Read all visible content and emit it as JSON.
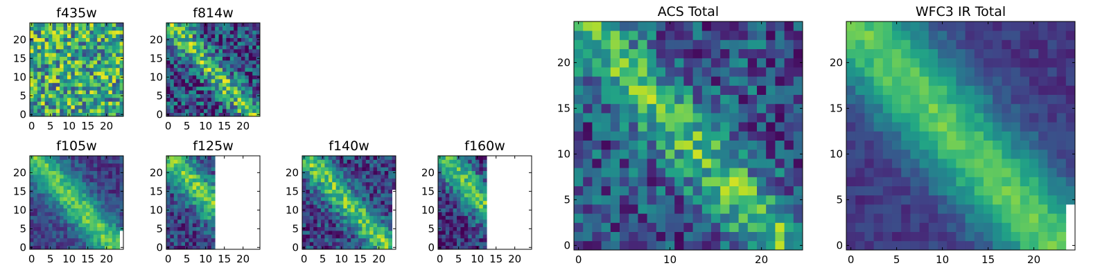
{
  "colormap": "viridis",
  "background": "#ffffff",
  "chart_data": [
    {
      "type": "heatmap",
      "id": "f435w",
      "title": "f435w",
      "grid": {
        "nx": 25,
        "ny": 25,
        "masked_x_from": null,
        "masked_y_below": null
      },
      "xlim": [
        0,
        24
      ],
      "ylim": [
        0,
        24
      ],
      "xticks": [
        0,
        5,
        10,
        15,
        20
      ],
      "yticks": [
        0,
        5,
        10,
        15,
        20
      ],
      "pattern": {
        "kind": "noise",
        "base": 0.6,
        "amp": 0.38,
        "seed": 11
      }
    },
    {
      "type": "heatmap",
      "id": "f814w",
      "title": "f814w",
      "grid": {
        "nx": 25,
        "ny": 25,
        "masked_x_from": null,
        "masked_y_below": null
      },
      "xlim": [
        0,
        24
      ],
      "ylim": [
        0,
        24
      ],
      "xticks": [
        0,
        5,
        10,
        15,
        20
      ],
      "yticks": [
        0,
        5,
        10,
        15,
        20
      ],
      "pattern": {
        "kind": "diagonal",
        "base": 0.5,
        "amp": 0.48,
        "noise": 0.32,
        "width": 2.2,
        "seed": 23
      }
    },
    {
      "type": "heatmap",
      "id": "f105w",
      "title": "f105w",
      "grid": {
        "nx": 25,
        "ny": 25,
        "masked_x_from": 24,
        "masked_y_below": 5
      },
      "xlim": [
        0,
        24
      ],
      "ylim": [
        0,
        24
      ],
      "xticks": [
        0,
        5,
        10,
        15,
        20
      ],
      "yticks": [
        0,
        5,
        10,
        15,
        20
      ],
      "pattern": {
        "kind": "diagonal",
        "base": 0.45,
        "amp": 0.55,
        "noise": 0.14,
        "width": 3.2,
        "seed": 31
      }
    },
    {
      "type": "heatmap",
      "id": "f125w",
      "title": "f125w",
      "grid": {
        "nx": 25,
        "ny": 25,
        "masked_x_from": 13,
        "masked_y_below": null
      },
      "xlim": [
        0,
        24
      ],
      "ylim": [
        0,
        24
      ],
      "xticks": [
        0,
        5,
        10,
        15,
        20
      ],
      "yticks": [
        0,
        5,
        10,
        15,
        20
      ],
      "pattern": {
        "kind": "diagonal",
        "base": 0.45,
        "amp": 0.55,
        "noise": 0.2,
        "width": 3.0,
        "seed": 37
      }
    },
    {
      "type": "heatmap",
      "id": "f140w",
      "title": "f140w",
      "grid": {
        "nx": 25,
        "ny": 25,
        "masked_x_from": 24,
        "masked_y_below": 16
      },
      "xlim": [
        0,
        24
      ],
      "ylim": [
        0,
        24
      ],
      "xticks": [
        0,
        5,
        10,
        15,
        20
      ],
      "yticks": [
        0,
        5,
        10,
        15,
        20
      ],
      "pattern": {
        "kind": "diagonal",
        "base": 0.45,
        "amp": 0.55,
        "noise": 0.22,
        "width": 2.6,
        "seed": 41
      }
    },
    {
      "type": "heatmap",
      "id": "f160w",
      "title": "f160w",
      "grid": {
        "nx": 25,
        "ny": 25,
        "masked_x_from": 13,
        "masked_y_below": null
      },
      "xlim": [
        0,
        24
      ],
      "ylim": [
        0,
        24
      ],
      "xticks": [
        0,
        5,
        10,
        15,
        20
      ],
      "yticks": [
        0,
        5,
        10,
        15,
        20
      ],
      "pattern": {
        "kind": "diagonal",
        "base": 0.4,
        "amp": 0.58,
        "noise": 0.22,
        "width": 3.0,
        "seed": 47
      }
    },
    {
      "type": "heatmap",
      "id": "acs-total",
      "title": "ACS Total",
      "grid": {
        "nx": 25,
        "ny": 25,
        "masked_x_from": null,
        "masked_y_below": null
      },
      "xlim": [
        0,
        24
      ],
      "ylim": [
        0,
        24
      ],
      "xticks": [
        0,
        10,
        20
      ],
      "yticks": [
        0,
        5,
        10,
        15,
        20
      ],
      "pattern": {
        "kind": "diagonal",
        "base": 0.52,
        "amp": 0.42,
        "noise": 0.26,
        "width": 2.4,
        "seed": 53
      }
    },
    {
      "type": "heatmap",
      "id": "wfc3-ir-total",
      "title": "WFC3 IR Total",
      "grid": {
        "nx": 25,
        "ny": 25,
        "masked_x_from": 24,
        "masked_y_below": 5
      },
      "xlim": [
        0,
        24
      ],
      "ylim": [
        0,
        24
      ],
      "xticks": [
        0,
        5,
        10,
        15,
        20
      ],
      "yticks": [
        0,
        5,
        10,
        15,
        20
      ],
      "pattern": {
        "kind": "diagonal",
        "base": 0.42,
        "amp": 0.58,
        "noise": 0.08,
        "width": 3.6,
        "seed": 59
      }
    }
  ]
}
